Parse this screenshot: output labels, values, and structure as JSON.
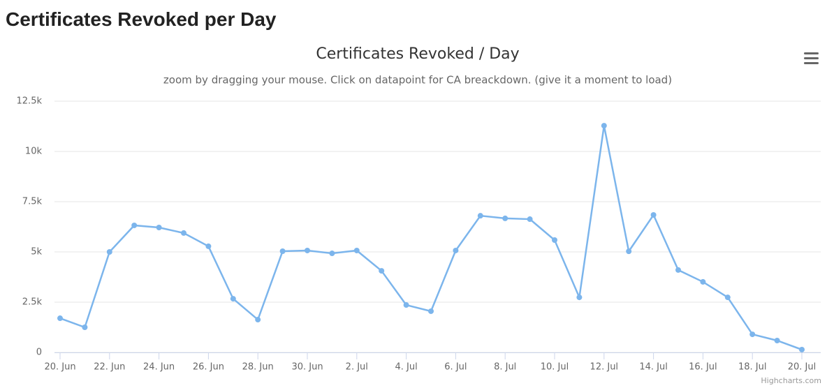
{
  "page": {
    "heading": "Certificates Revoked per Day"
  },
  "chart_data": {
    "type": "line",
    "title": "Certificates Revoked / Day",
    "subtitle": "zoom by dragging your mouse. Click on datapoint for CA breackdown. (give it a moment to load)",
    "credits": "Highcharts.com",
    "categories": [
      "20. Jun",
      null,
      "22. Jun",
      null,
      "24. Jun",
      null,
      "26. Jun",
      null,
      "28. Jun",
      null,
      "30. Jun",
      null,
      "2. Jul",
      null,
      "4. Jul",
      null,
      "6. Jul",
      null,
      "8. Jul",
      null,
      "10. Jul",
      null,
      "12. Jul",
      null,
      "14. Jul",
      null,
      "16. Jul",
      null,
      "18. Jul",
      null,
      "20. Jul"
    ],
    "series": [
      {
        "name": "Certificates Revoked",
        "color": "#7cb5ec",
        "values": [
          1700,
          1250,
          5000,
          6320,
          6215,
          5940,
          5280,
          2670,
          1630,
          5035,
          5070,
          4930,
          5070,
          4060,
          2360,
          2050,
          5070,
          6800,
          6670,
          6630,
          5590,
          2740,
          11280,
          5030,
          6840,
          4100,
          3510,
          2740,
          900,
          590,
          140
        ]
      }
    ],
    "ylim": [
      0,
      12500
    ],
    "yticks": [
      0,
      {
        "value": 2500,
        "label": "2.5k"
      },
      {
        "value": 5000,
        "label": "5k"
      },
      {
        "value": 7500,
        "label": "7.5k"
      },
      {
        "value": 10000,
        "label": "10k"
      },
      {
        "value": 12500,
        "label": "12.5k"
      }
    ],
    "grid": true
  }
}
